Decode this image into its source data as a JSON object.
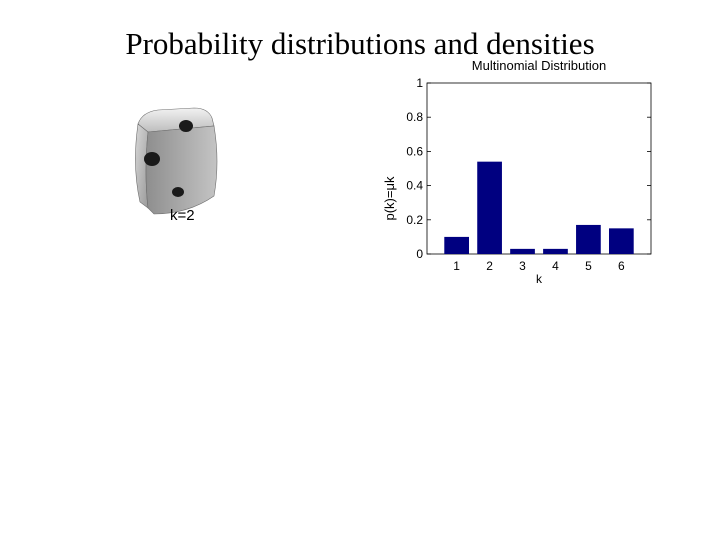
{
  "slide": {
    "title": "Probability distributions and densities"
  },
  "die": {
    "label": "k=2"
  },
  "colors": {
    "bar": "#000080",
    "axis": "#000000",
    "background": "#ffffff"
  },
  "chart_data": {
    "type": "bar",
    "title": "Multinomial Distribution",
    "xlabel": "k",
    "ylabel": "p(k)=μk",
    "categories": [
      "1",
      "2",
      "3",
      "4",
      "5",
      "6"
    ],
    "values": [
      0.1,
      0.54,
      0.03,
      0.03,
      0.17,
      0.15
    ],
    "ylim": [
      0,
      1
    ],
    "yticks": [
      0,
      0.2,
      0.4,
      0.6,
      0.8,
      1
    ],
    "ytick_labels": [
      "0",
      "0.2",
      "0.4",
      "0.6",
      "0.8",
      "1"
    ],
    "grid": false,
    "legend": "none"
  }
}
